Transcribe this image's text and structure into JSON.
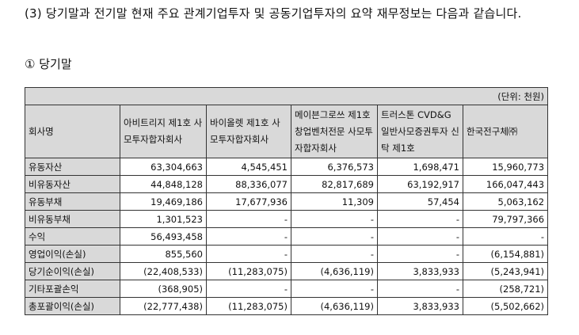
{
  "intro_text": "(3) 당기말과 전기말 현재 주요 관계기업투자 및 공동기업투자의 요약 재무정보는 다음과 같습니다.",
  "subheading": "① 당기말",
  "table": {
    "unit": "(단위: 천원)",
    "corner_header": "회사명",
    "companies": [
      "아비트리지 제1호 사모투자합자회사",
      "바이올렛 제1호 사모투자합자회사",
      "메이븐그로쓰 제1호 창업벤처전문 사모투자합자회사",
      "트러스톤 CVD&G 일반사모증권투자 신탁 제1호",
      "한국전구체㈜"
    ],
    "rows": [
      {
        "label": "유동자산",
        "values": [
          "63,304,663",
          "4,545,451",
          "6,376,573",
          "1,698,471",
          "15,960,773"
        ]
      },
      {
        "label": "비유동자산",
        "values": [
          "44,848,128",
          "88,336,077",
          "82,817,689",
          "63,192,917",
          "166,047,443"
        ]
      },
      {
        "label": "유동부채",
        "values": [
          "19,469,186",
          "17,677,936",
          "11,309",
          "57,454",
          "5,063,162"
        ]
      },
      {
        "label": "비유동부채",
        "values": [
          "1,301,523",
          "-",
          "-",
          "-",
          "79,797,366"
        ]
      },
      {
        "label": "수익",
        "values": [
          "56,493,458",
          "-",
          "-",
          "-",
          "-"
        ]
      },
      {
        "label": "영업이익(손실)",
        "values": [
          "855,560",
          "-",
          "-",
          "-",
          "(6,154,881)"
        ]
      },
      {
        "label": "당기순이익(손실)",
        "values": [
          "(22,408,533)",
          "(11,283,075)",
          "(4,636,119)",
          "3,833,933",
          "(5,243,941)"
        ]
      },
      {
        "label": "기타포괄손익",
        "values": [
          "(368,905)",
          "-",
          "-",
          "-",
          "(258,721)"
        ]
      },
      {
        "label": "총포괄이익(손실)",
        "values": [
          "(22,777,438)",
          "(11,283,075)",
          "(4,636,119)",
          "3,833,933",
          "(5,502,662)"
        ]
      }
    ]
  }
}
